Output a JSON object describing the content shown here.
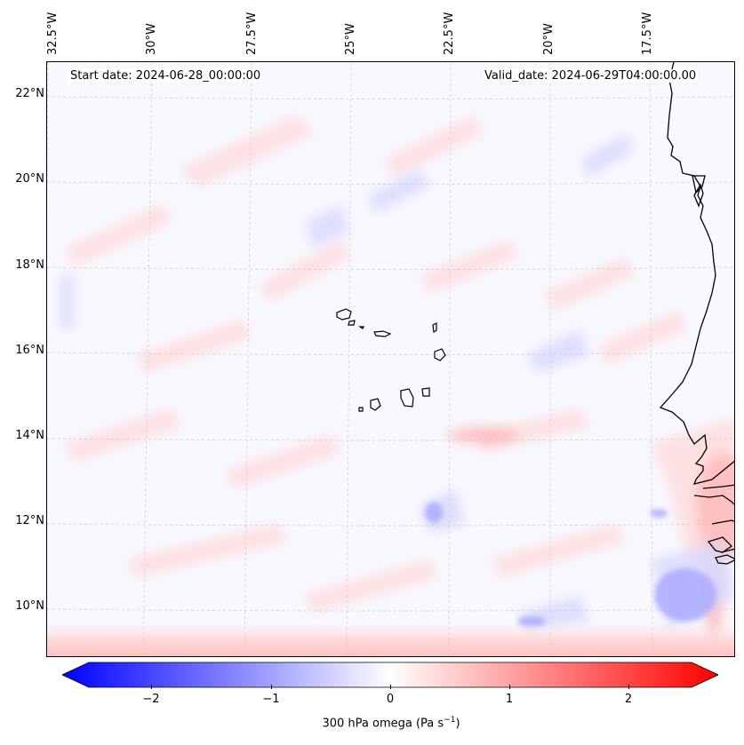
{
  "map": {
    "start_date": "Start date: 2024-06-28_00:00:00",
    "valid_date": "Valid_date: 2024-06-29T04:00:00.00",
    "lon_labels": [
      "32.5°W",
      "30°W",
      "27.5°W",
      "25°W",
      "22.5°W",
      "20°W",
      "17.5°W"
    ],
    "lat_labels": [
      "22°N",
      "20°N",
      "18°N",
      "16°N",
      "14°N",
      "12°N",
      "10°N"
    ]
  },
  "colorbar": {
    "label_prefix": "300 hPa omega (Pa s",
    "label_sup": "−1",
    "label_suffix": ")",
    "ticks": [
      "−2",
      "−1",
      "0",
      "1",
      "2"
    ],
    "tick_values": [
      -2,
      -1,
      0,
      1,
      2
    ],
    "vmin": -2.6,
    "vmax": 2.6,
    "min_color": "#0000ff",
    "mid_color": "#ffffff",
    "max_color": "#ff0000"
  },
  "style": {
    "coast_color": "#000000",
    "grid_color": "#c8c8c8",
    "neg_color": "#6a6aff",
    "pos_color": "#ff7a7a"
  }
}
